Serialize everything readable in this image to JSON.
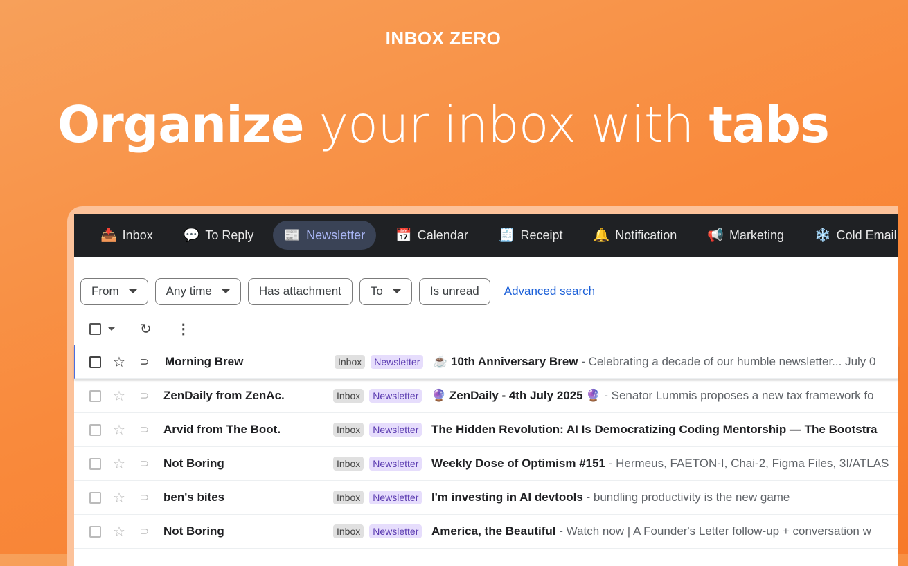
{
  "brand": "INBOX ZERO",
  "headline": {
    "part1": "Organize",
    "part2": " your inbox with ",
    "part3": "tabs"
  },
  "tabs": [
    {
      "label": "Inbox",
      "icon": "📥",
      "active": false
    },
    {
      "label": "To Reply",
      "icon": "💬",
      "active": false
    },
    {
      "label": "Newsletter",
      "icon": "📰",
      "active": true
    },
    {
      "label": "Calendar",
      "icon": "📅",
      "active": false
    },
    {
      "label": "Receipt",
      "icon": "🧾",
      "active": false
    },
    {
      "label": "Notification",
      "icon": "🔔",
      "active": false
    },
    {
      "label": "Marketing",
      "icon": "📢",
      "active": false
    },
    {
      "label": "Cold Email",
      "icon": "❄️",
      "active": false
    }
  ],
  "filters": [
    {
      "label": "From",
      "dropdown": true
    },
    {
      "label": "Any time",
      "dropdown": true
    },
    {
      "label": "Has attachment",
      "dropdown": false
    },
    {
      "label": "To",
      "dropdown": true
    },
    {
      "label": "Is unread",
      "dropdown": false
    }
  ],
  "advanced_search": "Advanced search",
  "colors": {
    "accent": "#f98a3c",
    "nav_bg": "#1f2124",
    "link": "#1a5fd8"
  },
  "emails": [
    {
      "sender": "Morning Brew",
      "labels": [
        "Inbox",
        "Newsletter"
      ],
      "subject": "☕ 10th Anniversary Brew",
      "snippet": " - Celebrating a decade of our humble newsletter... July 0"
    },
    {
      "sender": "ZenDaily from ZenAc.",
      "labels": [
        "Inbox",
        "Newsletter"
      ],
      "subject": "🔮 ZenDaily - 4th July 2025 🔮",
      "snippet": " - Senator Lummis proposes a new tax framework fo"
    },
    {
      "sender": "Arvid from The Boot.",
      "labels": [
        "Inbox",
        "Newsletter"
      ],
      "subject": "The Hidden Revolution: AI Is Democratizing Coding Mentorship — The Bootstra",
      "snippet": ""
    },
    {
      "sender": "Not Boring",
      "labels": [
        "Inbox",
        "Newsletter"
      ],
      "subject": "Weekly Dose of Optimism #151",
      "snippet": " - Hermeus, FAETON-I, Chai-2, Figma Files, 3I/ATLAS"
    },
    {
      "sender": "ben's bites",
      "labels": [
        "Inbox",
        "Newsletter"
      ],
      "subject": "I'm investing in AI devtools",
      "snippet": " - bundling productivity is the new game"
    },
    {
      "sender": "Not Boring",
      "labels": [
        "Inbox",
        "Newsletter"
      ],
      "subject": "America, the Beautiful",
      "snippet": " - Watch now | A Founder's Letter follow-up + conversation w"
    }
  ]
}
